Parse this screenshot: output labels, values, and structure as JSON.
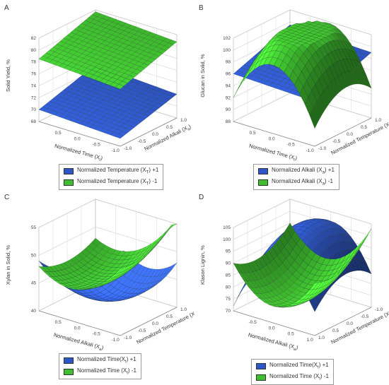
{
  "chart_data": [
    {
      "panel": "A",
      "type": "surface3d",
      "ylabel": "Solid Yield, %",
      "xlabel": "Normalized Time (X_t)",
      "zlabel": "Normalized Alkali (X_a)",
      "ylim": [
        68,
        82
      ],
      "yticks": [
        "68",
        "70",
        "72",
        "74",
        "76",
        "78",
        "80",
        "82"
      ],
      "xticks": [
        "0.5",
        "0.0",
        "-0.5",
        "-1.0"
      ],
      "zticks": [
        "1.0",
        "0.5",
        "0.0",
        "-0.5",
        "-1.0"
      ],
      "series": [
        {
          "name": "Normalized Temperature (X_T) +1",
          "color": "#2e56c7",
          "corners": [
            70.0,
            69.3,
            72.8,
            72.0
          ],
          "curvature": 0.0
        },
        {
          "name": "Normalized Temperature (X_T) -1",
          "color": "#3fbf2f",
          "corners": [
            78.5,
            77.6,
            81.7,
            80.8
          ],
          "curvature": 0.0
        }
      ],
      "legend": [
        {
          "text": "Normalized Temperature (X",
          "sub": "T",
          "tail": ") +1",
          "color": "#2e56c7"
        },
        {
          "text": "Normalized Temperature (X",
          "sub": "T",
          "tail": ") -1",
          "color": "#3fbf2f"
        }
      ]
    },
    {
      "panel": "B",
      "type": "surface3d",
      "ylabel": "Glucan in Solid, %",
      "xlabel": "Normalized Time (X_t)",
      "zlabel": "Normalized Temperature (X_T)",
      "ylim": [
        88,
        102
      ],
      "yticks": [
        "88",
        "90",
        "92",
        "94",
        "96",
        "98",
        "100",
        "102"
      ],
      "xticks": [
        "0.5",
        "0.0",
        "-0.5",
        "-1.0"
      ],
      "zticks": [
        "1.0",
        "0.5",
        "0.0",
        "-0.5",
        "-1.0"
      ],
      "series": [
        {
          "name": "Normalized Alkali (X_a) +1",
          "color": "#2e56c7",
          "corners": [
            96.0,
            95.5,
            99.5,
            99.0
          ],
          "curvature": 0.0
        },
        {
          "name": "Normalized Alkali (X_a) -1",
          "color": "#3fbf2f",
          "corners": [
            92.0,
            91.0,
            94.5,
            93.0
          ],
          "curvature": 8.0
        }
      ],
      "legend": [
        {
          "text": "Normalized Alkali (X",
          "sub": "a",
          "tail": ") +1",
          "color": "#2e56c7"
        },
        {
          "text": "Normalized Alkali (X",
          "sub": "a",
          "tail": ") -1",
          "color": "#3fbf2f"
        }
      ]
    },
    {
      "panel": "C",
      "type": "surface3d",
      "ylabel": "Xylan in Solid, %",
      "xlabel": "Normalized Alkali (X_a)",
      "zlabel": "Normalized Temperature (X_T)",
      "ylim": [
        40,
        55
      ],
      "yticks": [
        "40",
        "45",
        "50",
        "55"
      ],
      "xticks": [
        "0.5",
        "0.0",
        "-0.5",
        "-1.0"
      ],
      "zticks": [
        "1.0",
        "0.5",
        "0.0",
        "-0.5",
        "-1.0"
      ],
      "series": [
        {
          "name": "Normalized Time(X_t) +1",
          "color": "#2e56c7",
          "corners": [
            49.0,
            56.0,
            46.0,
            48.0
          ],
          "curvature": -6.0
        },
        {
          "name": "Normalized Time (X_t) -1",
          "color": "#3fbf2f",
          "corners": [
            48.0,
            52.0,
            48.0,
            56.0
          ],
          "curvature": -4.0
        }
      ],
      "legend": [
        {
          "text": "Normalized Time(X",
          "sub": "t",
          "tail": ") +1",
          "color": "#2e56c7"
        },
        {
          "text": "Normalized Time (X",
          "sub": "t",
          "tail": ") -1",
          "color": "#3fbf2f"
        }
      ]
    },
    {
      "panel": "D",
      "type": "surface3d",
      "ylabel": "Klason Lignin, %",
      "xlabel": "Normalized Alkali (X_a)",
      "zlabel": "Normalized Temperature (X_T)",
      "ylim": [
        70,
        105
      ],
      "yticks": [
        "70",
        "75",
        "80",
        "85",
        "90",
        "95",
        "100",
        "105"
      ],
      "xticks": [
        "-0.5",
        "0.0",
        "0.5",
        "1.0"
      ],
      "zticks": [
        "-1.0",
        "-0.5",
        "0.0",
        "0.5",
        "1.0"
      ],
      "series": [
        {
          "name": "Normalized Time(X_t) +1",
          "color": "#2e56c7",
          "corners": [
            72.0,
            80.0,
            82.0,
            84.0
          ],
          "curvature": 18.0
        },
        {
          "name": "Normalized Time (X_t) -1",
          "color": "#3fbf2f",
          "corners": [
            90.0,
            92.0,
            95.0,
            103.0
          ],
          "curvature": -14.0
        }
      ],
      "legend": [
        {
          "text": "Normalized Time(X",
          "sub": "t",
          "tail": ") +1",
          "color": "#2e56c7"
        },
        {
          "text": "Normalized Time (X",
          "sub": "t",
          "tail": ") -1",
          "color": "#3fbf2f"
        }
      ]
    }
  ]
}
